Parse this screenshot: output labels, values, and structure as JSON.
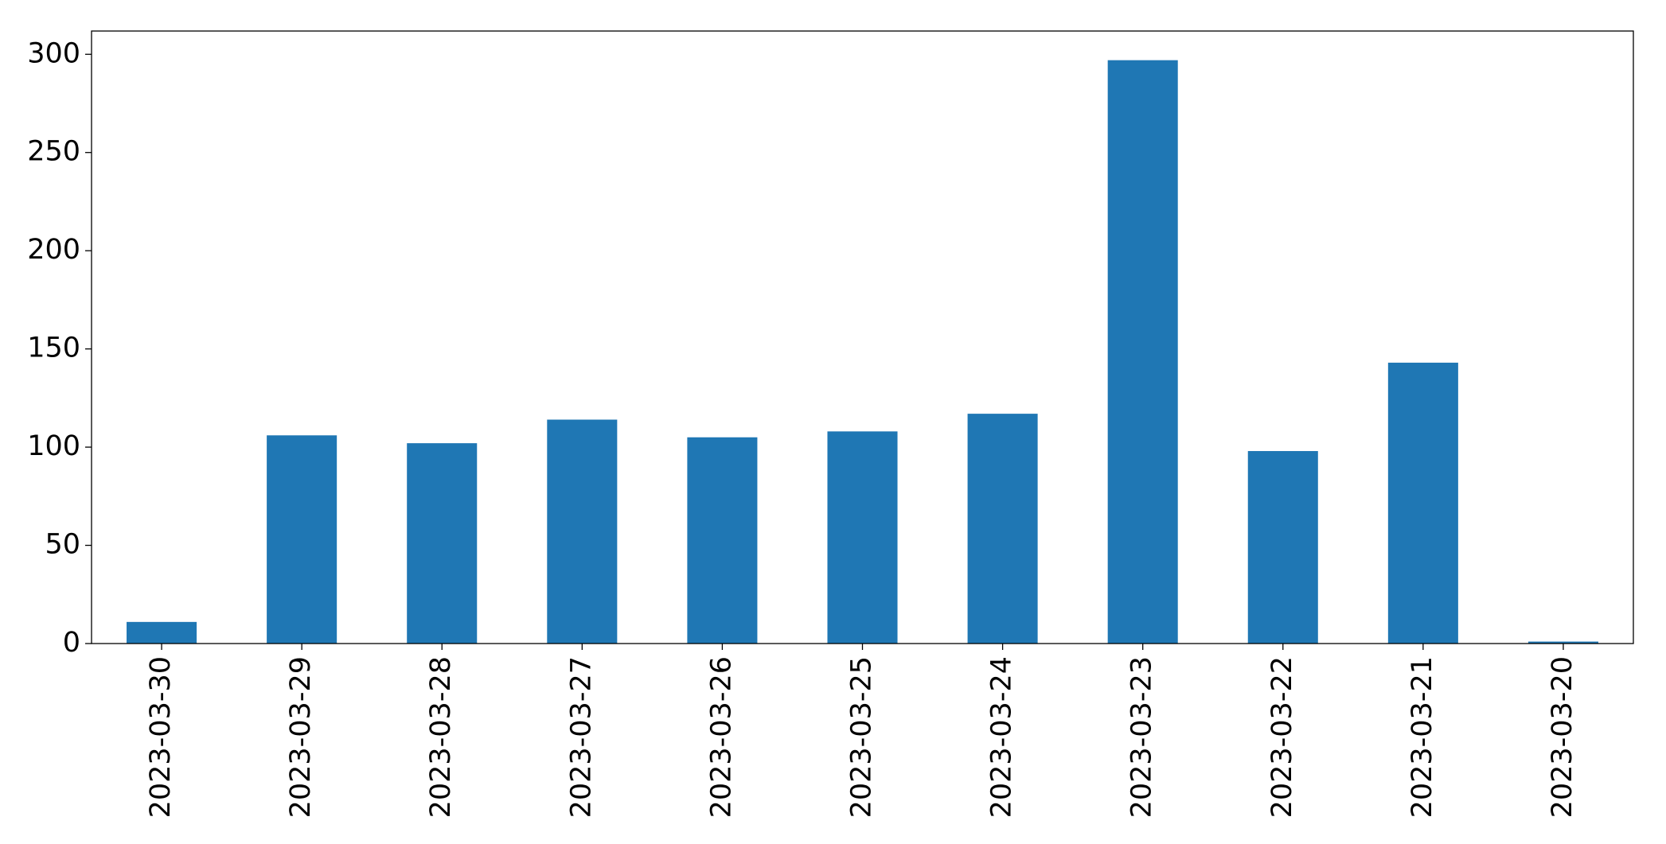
{
  "chart_data": {
    "type": "bar",
    "categories": [
      "2023-03-30",
      "2023-03-29",
      "2023-03-28",
      "2023-03-27",
      "2023-03-26",
      "2023-03-25",
      "2023-03-24",
      "2023-03-23",
      "2023-03-22",
      "2023-03-21",
      "2023-03-20"
    ],
    "values": [
      11,
      106,
      102,
      114,
      105,
      108,
      117,
      297,
      98,
      143,
      1
    ],
    "color": "#1f77b4",
    "ylim": [
      0,
      311.85
    ],
    "yticks": [
      0,
      50,
      100,
      150,
      200,
      250,
      300
    ],
    "grid": false
  }
}
